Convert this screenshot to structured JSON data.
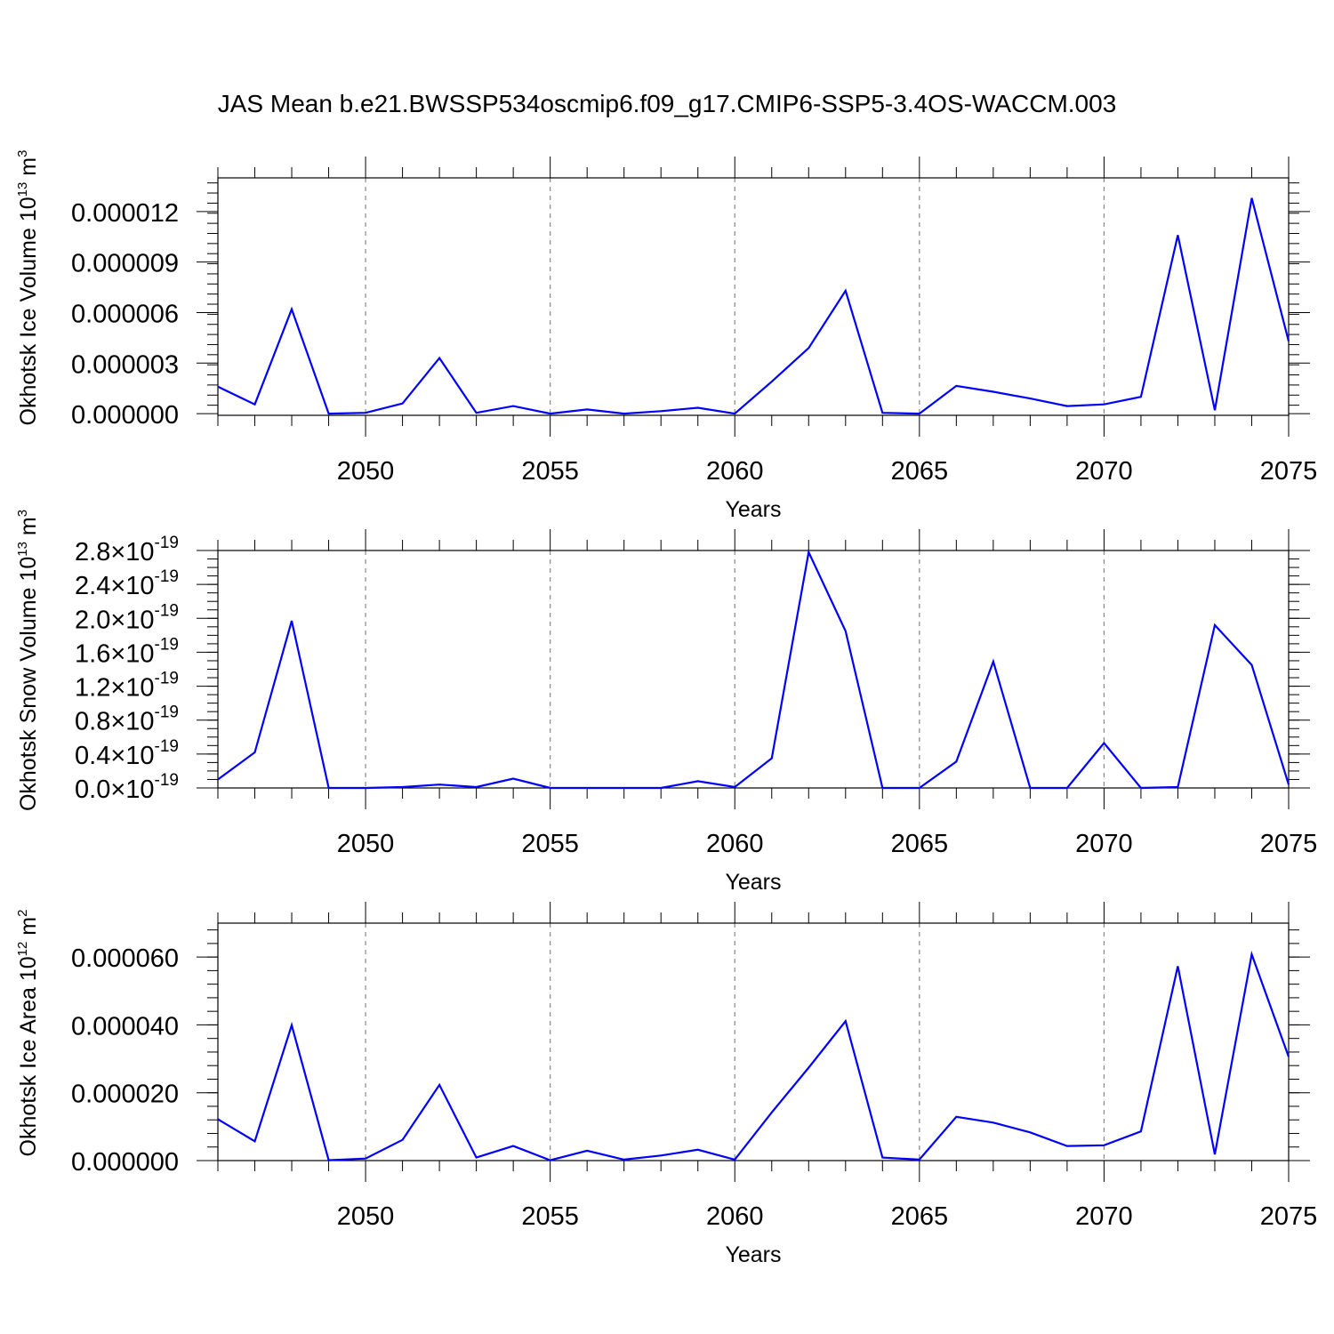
{
  "title": "JAS Mean b.e21.BWSSP534oscmip6.f09_g17.CMIP6-SSP5-3.4OS-WACCM.003",
  "chart_data": [
    {
      "type": "line",
      "ylabel": "Okhotsk Ice Volume 10",
      "ylabel_exp": "13",
      "ylabel_unit": "m",
      "ylabel_unit_exp": "3",
      "xlabel": "Years",
      "xlim": [
        2046,
        2075
      ],
      "ylim": [
        -1e-07,
        1.4e-05
      ],
      "yticks": [
        0,
        3e-06,
        6e-06,
        9e-06,
        1.2e-05
      ],
      "ytick_labels": [
        "0.000000",
        "0.000003",
        "0.000006",
        "0.000009",
        "0.000012"
      ],
      "yminor_step": 6e-07,
      "xticks": [
        2050,
        2055,
        2060,
        2065,
        2070,
        2075
      ],
      "xtick_labels": [
        "2050",
        "2055",
        "2060",
        "2065",
        "2070",
        "2075"
      ],
      "line_color": "#0000ff",
      "grid_x": true,
      "x": [
        2046,
        2047,
        2048,
        2049,
        2050,
        2051,
        2052,
        2053,
        2054,
        2055,
        2056,
        2057,
        2058,
        2059,
        2060,
        2061,
        2062,
        2063,
        2064,
        2065,
        2066,
        2067,
        2068,
        2069,
        2070,
        2071,
        2072,
        2073,
        2074,
        2075
      ],
      "y": [
        1.6e-06,
        5.5e-07,
        6.2e-06,
        0.0,
        5e-08,
        6e-07,
        3.3e-06,
        5e-08,
        4.5e-07,
        0.0,
        2.5e-07,
        0.0,
        1.5e-07,
        3.5e-07,
        0.0,
        1.9e-06,
        3.9e-06,
        7.3e-06,
        5e-08,
        0.0,
        1.65e-06,
        1.3e-06,
        9e-07,
        4.5e-07,
        5.5e-07,
        1e-06,
        1.06e-05,
        2e-07,
        1.28e-05,
        4.3e-06
      ]
    },
    {
      "type": "line",
      "ylabel": "Okhotsk Snow Volume 10",
      "ylabel_exp": "13",
      "ylabel_unit": "m",
      "ylabel_unit_exp": "3",
      "xlabel": "Years",
      "xlim": [
        2046,
        2075
      ],
      "ylim": [
        0,
        2.8e-19
      ],
      "yticks": [
        0,
        4e-20,
        8e-20,
        1.2e-19,
        1.6e-19,
        2e-19,
        2.4e-19,
        2.8e-19
      ],
      "ytick_labels": [
        "0.0",
        "0.4",
        "0.8",
        "1.2",
        "1.6",
        "2.0",
        "2.4",
        "2.8"
      ],
      "ytick_mult": "×10",
      "ytick_exp": "-19",
      "yminor_step": 1e-20,
      "xticks": [
        2050,
        2055,
        2060,
        2065,
        2070,
        2075
      ],
      "xtick_labels": [
        "2050",
        "2055",
        "2060",
        "2065",
        "2070",
        "2075"
      ],
      "line_color": "#0000ff",
      "grid_x": true,
      "x": [
        2046,
        2047,
        2048,
        2049,
        2050,
        2051,
        2052,
        2053,
        2054,
        2055,
        2056,
        2057,
        2058,
        2059,
        2060,
        2061,
        2062,
        2063,
        2064,
        2065,
        2066,
        2067,
        2068,
        2069,
        2070,
        2071,
        2072,
        2073,
        2074,
        2075
      ],
      "y": [
        1e-20,
        4.2e-20,
        1.97e-19,
        0.0,
        0.0,
        1e-21,
        4e-21,
        1e-21,
        1.1e-20,
        0.0,
        0.0,
        0.0,
        0.0,
        8e-21,
        1e-21,
        3.5e-20,
        2.78e-19,
        1.85e-19,
        0.0,
        0.0,
        3.1e-20,
        1.49e-19,
        0.0,
        0.0,
        5.3e-20,
        0.0,
        1e-21,
        1.92e-19,
        1.45e-19,
        4e-21
      ]
    },
    {
      "type": "line",
      "ylabel": "Okhotsk Ice Area 10",
      "ylabel_exp": "12",
      "ylabel_unit": "m",
      "ylabel_unit_exp": "2",
      "xlabel": "Years",
      "xlim": [
        2046,
        2075
      ],
      "ylim": [
        0,
        7e-05
      ],
      "yticks": [
        0,
        2e-05,
        4e-05,
        6e-05
      ],
      "ytick_labels": [
        "0.000000",
        "0.000020",
        "0.000040",
        "0.000060"
      ],
      "yminor_step": 4e-06,
      "xticks": [
        2050,
        2055,
        2060,
        2065,
        2070,
        2075
      ],
      "xtick_labels": [
        "2050",
        "2055",
        "2060",
        "2065",
        "2070",
        "2075"
      ],
      "line_color": "#0000ff",
      "grid_x": true,
      "x": [
        2046,
        2047,
        2048,
        2049,
        2050,
        2051,
        2052,
        2053,
        2054,
        2055,
        2056,
        2057,
        2058,
        2059,
        2060,
        2061,
        2062,
        2063,
        2064,
        2065,
        2066,
        2067,
        2068,
        2069,
        2070,
        2071,
        2072,
        2073,
        2074,
        2075
      ],
      "y": [
        1.22e-05,
        5.7e-06,
        3.99e-05,
        1e-07,
        6e-07,
        6.1e-06,
        2.23e-05,
        9e-07,
        4.3e-06,
        1e-07,
        2.9e-06,
        3e-07,
        1.5e-06,
        3.2e-06,
        3e-07,
        1.42e-05,
        2.74e-05,
        4.11e-05,
        9e-07,
        3e-07,
        1.29e-05,
        1.12e-05,
        8.3e-06,
        4.3e-06,
        4.5e-06,
        8.6e-06,
        5.73e-05,
        1.8e-06,
        6.08e-05,
        3.06e-05
      ]
    }
  ]
}
